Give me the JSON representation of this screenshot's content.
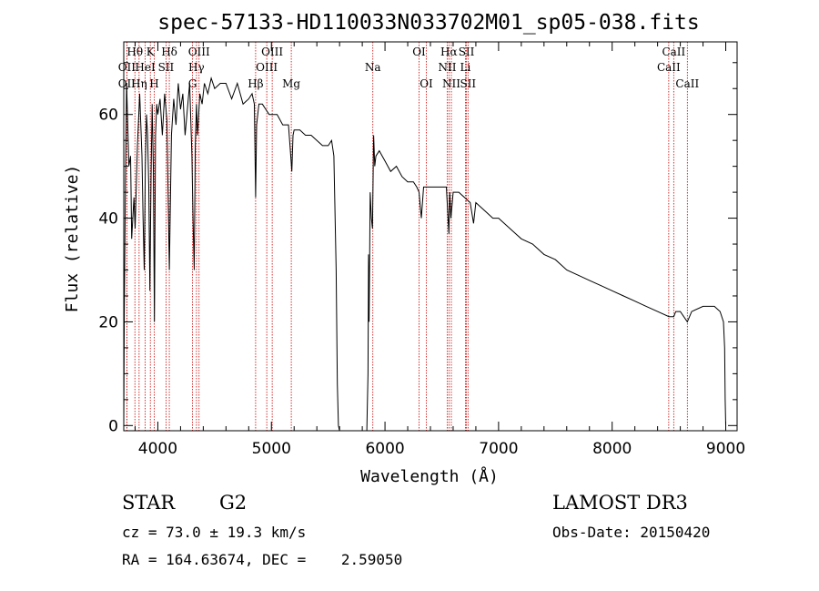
{
  "chart_data": {
    "type": "line",
    "title": "spec-57133-HD110033N033702M01_sp05-038.fits",
    "xlabel": "Wavelength (Å)",
    "ylabel": "Flux (relative)",
    "xlim": [
      3700,
      9100
    ],
    "ylim": [
      -1,
      74
    ],
    "xticks": [
      4000,
      5000,
      6000,
      7000,
      8000,
      9000
    ],
    "yticks": [
      0,
      20,
      40,
      60
    ],
    "series": [
      {
        "name": "spectrum",
        "x": [
          3700,
          3705,
          3715,
          3725,
          3735,
          3745,
          3760,
          3770,
          3790,
          3800,
          3820,
          3840,
          3860,
          3870,
          3880,
          3890,
          3900,
          3910,
          3920,
          3930,
          3940,
          3950,
          3960,
          3970,
          3980,
          3990,
          4000,
          4020,
          4040,
          4060,
          4080,
          4101,
          4120,
          4140,
          4160,
          4180,
          4200,
          4220,
          4240,
          4260,
          4280,
          4300,
          4310,
          4320,
          4330,
          4340,
          4350,
          4370,
          4390,
          4410,
          4440,
          4470,
          4500,
          4550,
          4600,
          4650,
          4700,
          4750,
          4800,
          4830,
          4850,
          4861,
          4870,
          4890,
          4920,
          4950,
          4980,
          5000,
          5050,
          5100,
          5150,
          5170,
          5180,
          5190,
          5200,
          5250,
          5300,
          5350,
          5400,
          5450,
          5500,
          5530,
          5550,
          5570,
          5580,
          5590,
          5600,
          5700,
          5800,
          5840,
          5850,
          5855,
          5860,
          5870,
          5880,
          5890,
          5900,
          5910,
          5920,
          5950,
          6000,
          6050,
          6100,
          6150,
          6200,
          6250,
          6280,
          6300,
          6320,
          6340,
          6360,
          6400,
          6450,
          6500,
          6540,
          6563,
          6570,
          6580,
          6600,
          6650,
          6700,
          6750,
          6780,
          6800,
          6850,
          6900,
          6950,
          7000,
          7100,
          7200,
          7300,
          7400,
          7500,
          7600,
          7700,
          7800,
          7900,
          8000,
          8100,
          8200,
          8300,
          8400,
          8500,
          8542,
          8560,
          8600,
          8662,
          8700,
          8800,
          8900,
          8950,
          8980,
          8990,
          8995,
          9000
        ],
        "values": [
          0,
          22,
          48,
          66,
          58,
          50,
          52,
          36,
          44,
          38,
          54,
          64,
          52,
          40,
          30,
          50,
          60,
          56,
          46,
          26,
          48,
          62,
          50,
          20,
          56,
          62,
          60,
          63,
          56,
          64,
          59,
          30,
          56,
          63,
          58,
          66,
          61,
          64,
          56,
          61,
          66,
          52,
          40,
          30,
          54,
          62,
          56,
          64,
          62,
          66,
          64,
          67,
          65,
          66,
          66,
          63,
          66,
          62,
          63,
          64,
          62,
          44,
          58,
          62,
          62,
          61,
          60,
          60,
          60,
          58,
          58,
          52,
          49,
          56,
          57,
          57,
          56,
          56,
          55,
          54,
          54,
          55,
          52,
          30,
          8,
          0,
          -1,
          -1,
          -1,
          -1,
          10,
          33,
          20,
          45,
          40,
          38,
          56,
          50,
          52,
          53,
          51,
          49,
          50,
          48,
          47,
          47,
          46,
          45,
          40,
          46,
          46,
          46,
          46,
          46,
          46,
          37,
          45,
          40,
          45,
          45,
          44,
          43,
          39,
          43,
          42,
          41,
          40,
          40,
          38,
          36,
          35,
          33,
          32,
          30,
          29,
          28,
          27,
          26,
          25,
          24,
          23,
          22,
          21,
          21,
          22,
          22,
          20,
          22,
          23,
          23,
          22,
          20,
          15,
          5,
          0
        ]
      }
    ],
    "spectral_lines": [
      {
        "label": "Hθ",
        "wavelength": 3798,
        "row": 0
      },
      {
        "label": "OII",
        "wavelength": 3727,
        "row": 1
      },
      {
        "label": "OII",
        "wavelength": 3727,
        "row": 2
      },
      {
        "label": "HeI",
        "wavelength": 3889,
        "row": 1
      },
      {
        "label": "Hη",
        "wavelength": 3835,
        "row": 2
      },
      {
        "label": "K",
        "wavelength": 3934,
        "row": 0
      },
      {
        "label": "SII",
        "wavelength": 4072,
        "row": 1
      },
      {
        "label": "H",
        "wavelength": 3968,
        "row": 2
      },
      {
        "label": "Hδ",
        "wavelength": 4101,
        "row": 0
      },
      {
        "label": "OIII",
        "wavelength": 4363,
        "row": 0
      },
      {
        "label": "Hγ",
        "wavelength": 4340,
        "row": 1
      },
      {
        "label": "G",
        "wavelength": 4305,
        "row": 2
      },
      {
        "label": "Hβ",
        "wavelength": 4861,
        "row": 2
      },
      {
        "label": "OIII",
        "wavelength": 5007,
        "row": 0
      },
      {
        "label": "OIII",
        "wavelength": 4959,
        "row": 1
      },
      {
        "label": "Mg",
        "wavelength": 5175,
        "row": 2
      },
      {
        "label": "Na",
        "wavelength": 5893,
        "row": 1
      },
      {
        "label": "OI",
        "wavelength": 6300,
        "row": 0
      },
      {
        "label": "OI",
        "wavelength": 6364,
        "row": 2
      },
      {
        "label": "Hα",
        "wavelength": 6563,
        "row": 0
      },
      {
        "label": "NII",
        "wavelength": 6548,
        "row": 1
      },
      {
        "label": "NII",
        "wavelength": 6584,
        "row": 2
      },
      {
        "label": "SII",
        "wavelength": 6717,
        "row": 0
      },
      {
        "label": "Li",
        "wavelength": 6708,
        "row": 1
      },
      {
        "label": "SII",
        "wavelength": 6731,
        "row": 2
      },
      {
        "label": "CaII",
        "wavelength": 8542,
        "row": 0
      },
      {
        "label": "CaII",
        "wavelength": 8498,
        "row": 1
      },
      {
        "label": "CaII",
        "wavelength": 8662,
        "row": 2
      }
    ]
  },
  "info": {
    "object_class": "STAR",
    "subclass": "G2",
    "survey": "LAMOST DR3",
    "cz": "cz = 73.0 ± 19.3 km/s",
    "obs_date": "Obs-Date: 20150420",
    "coords": "RA = 164.63674, DEC =    2.59050"
  },
  "colors": {
    "spectrum": "#000000",
    "line_markers": "#cc0000",
    "text": "#000000",
    "background": "#ffffff"
  }
}
